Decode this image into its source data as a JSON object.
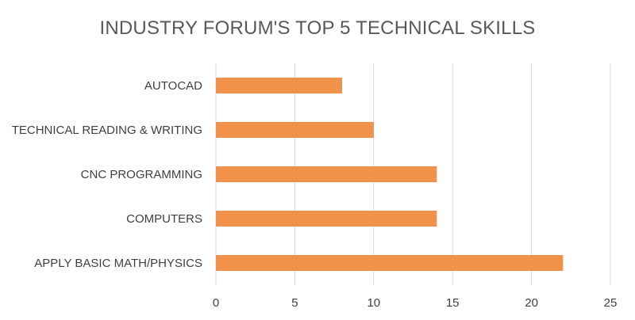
{
  "chart_data": {
    "type": "bar",
    "orientation": "horizontal",
    "title": "INDUSTRY FORUM'S TOP 5 TECHNICAL SKILLS",
    "categories": [
      "AUTOCAD",
      "TECHNICAL READING & WRITING",
      "CNC PROGRAMMING",
      "COMPUTERS",
      "APPLY BASIC MATH/PHYSICS"
    ],
    "values": [
      8,
      10,
      14,
      14,
      22
    ],
    "xlim": [
      0,
      25
    ],
    "xticks": [
      "0",
      "5",
      "10",
      "15",
      "20",
      "25"
    ],
    "xlabel": "",
    "ylabel": "",
    "grid": "vertical",
    "legend": "none",
    "bar_color": "#F0924A",
    "grid_color": "#D9D9D9"
  }
}
